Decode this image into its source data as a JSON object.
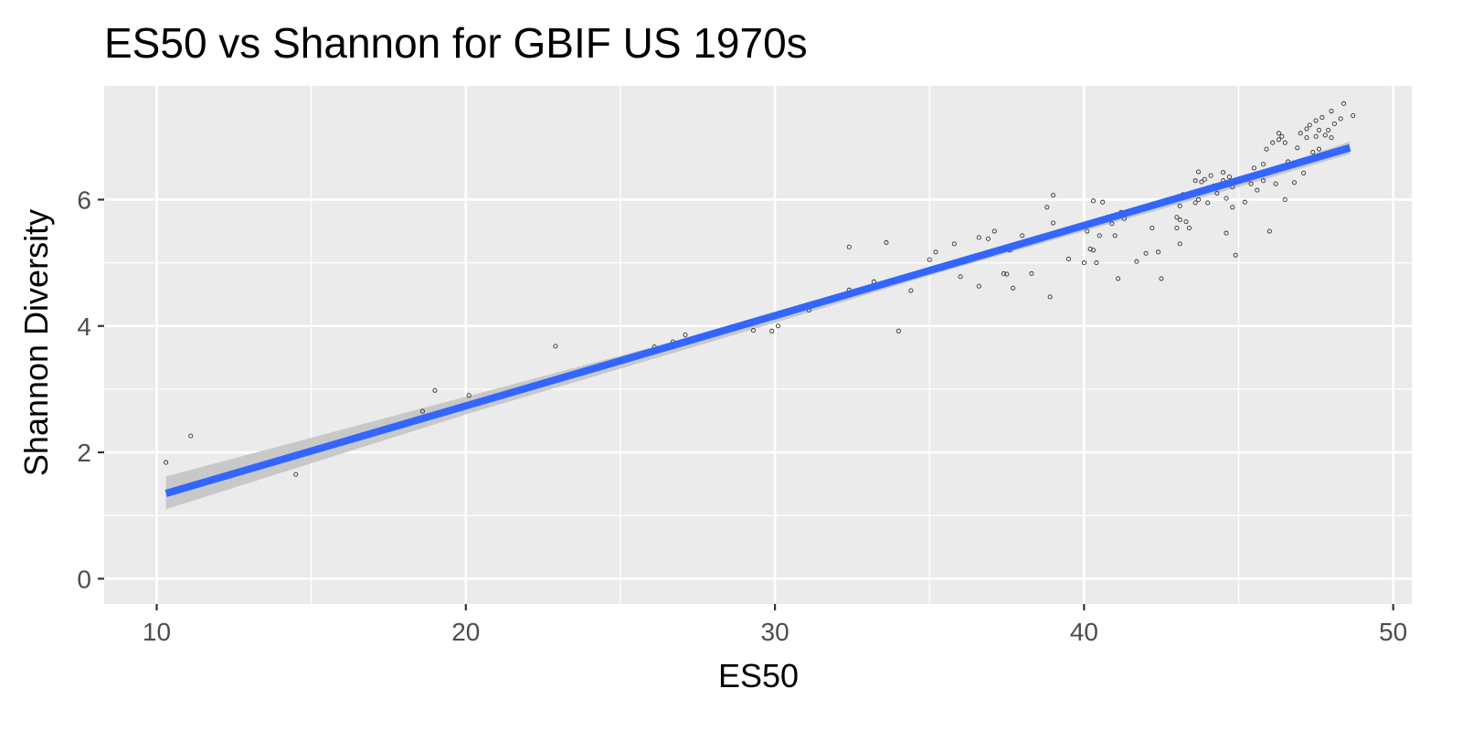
{
  "chart_data": {
    "type": "scatter",
    "title": "ES50 vs Shannon for GBIF US 1970s",
    "xlabel": "ES50",
    "ylabel": "Shannon Diversity",
    "xlim": [
      8.3,
      50.6
    ],
    "ylim": [
      -0.4,
      7.8
    ],
    "x_ticks": [
      10,
      20,
      30,
      40,
      50
    ],
    "x_tick_labels": [
      "10",
      "20",
      "30",
      "40",
      "50"
    ],
    "y_ticks": [
      0,
      2,
      4,
      6
    ],
    "y_tick_labels": [
      "0",
      "2",
      "4",
      "6"
    ],
    "grid": true,
    "legend": "none",
    "colors": {
      "panel_background": "#ebebeb",
      "grid": "#ffffff",
      "fit_line": "#3366ff",
      "confidence_band": "#c4c4c4",
      "points": "#333333"
    },
    "fit": {
      "method": "linear",
      "x": [
        10.3,
        48.6
      ],
      "y": [
        1.35,
        6.82
      ],
      "confidence_band": {
        "x": [
          10.3,
          20,
          30,
          35,
          40,
          45,
          48.6
        ],
        "lower": [
          1.1,
          2.6,
          4.05,
          4.8,
          5.5,
          6.2,
          6.72
        ],
        "upper": [
          1.62,
          2.88,
          4.18,
          4.88,
          5.6,
          6.32,
          6.92
        ]
      }
    },
    "series": [
      {
        "x": [
          10.3,
          11.1,
          14.5,
          18.6,
          19.0,
          20.1,
          22.9,
          26.1,
          26.7,
          27.1,
          29.3,
          29.9,
          30.1,
          31.1,
          32.4,
          32.4,
          33.2,
          33.6,
          34.0,
          34.4,
          35.0,
          35.2,
          35.8,
          36.0,
          36.6,
          36.6,
          36.9,
          37.1,
          37.4,
          37.5,
          37.6,
          37.7,
          38.0,
          38.3,
          38.8,
          38.9,
          39.0,
          39.0,
          39.5,
          40.0,
          40.1,
          40.2,
          40.3,
          40.3,
          40.4,
          40.5,
          40.6,
          40.9,
          41.0,
          41.1,
          41.2,
          41.3,
          41.7,
          42.0,
          42.2,
          42.4,
          42.5,
          42.8,
          43.0,
          43.0,
          43.1,
          43.1,
          43.1,
          43.2,
          43.3,
          43.4,
          43.6,
          43.6,
          43.7,
          43.7,
          43.8,
          43.9,
          44.0,
          44.0,
          44.1,
          44.2,
          44.3,
          44.5,
          44.5,
          44.6,
          44.6,
          44.7,
          44.8,
          44.8,
          44.9,
          45.0,
          45.2,
          45.3,
          45.4,
          45.5,
          45.6,
          45.7,
          45.8,
          45.8,
          45.9,
          46.0,
          46.1,
          46.2,
          46.3,
          46.3,
          46.4,
          46.5,
          46.5,
          46.6,
          46.8,
          46.9,
          47.0,
          47.1,
          47.2,
          47.2,
          47.3,
          47.4,
          47.5,
          47.5,
          47.6,
          47.6,
          47.7,
          47.8,
          47.9,
          48.0,
          48.0,
          48.1,
          48.3,
          48.4,
          48.7
        ],
        "y": [
          1.84,
          2.26,
          1.65,
          2.65,
          2.98,
          2.9,
          3.68,
          3.67,
          3.75,
          3.86,
          3.93,
          3.92,
          4.0,
          4.25,
          5.25,
          4.57,
          4.7,
          5.32,
          3.92,
          4.56,
          5.05,
          5.17,
          5.3,
          4.78,
          5.4,
          4.63,
          5.38,
          5.5,
          4.83,
          4.82,
          5.2,
          4.6,
          5.43,
          4.83,
          5.88,
          4.46,
          6.07,
          5.63,
          5.06,
          5.0,
          5.5,
          5.22,
          5.98,
          5.2,
          5.0,
          5.43,
          5.96,
          5.62,
          5.43,
          4.75,
          5.8,
          5.7,
          5.02,
          5.15,
          5.55,
          5.17,
          4.75,
          6.0,
          5.72,
          5.55,
          5.9,
          5.3,
          5.68,
          6.08,
          5.65,
          5.55,
          6.3,
          5.95,
          6.44,
          6.0,
          6.28,
          6.32,
          6.18,
          5.95,
          6.38,
          6.22,
          6.1,
          6.43,
          6.3,
          5.47,
          6.02,
          6.36,
          6.2,
          5.88,
          5.12,
          6.3,
          5.96,
          6.32,
          6.25,
          6.5,
          6.15,
          6.4,
          6.3,
          6.56,
          6.8,
          5.5,
          6.9,
          6.25,
          6.95,
          7.05,
          7.0,
          6.9,
          6.0,
          6.6,
          6.27,
          6.82,
          7.05,
          6.42,
          7.12,
          6.98,
          7.18,
          6.75,
          7.0,
          7.25,
          6.8,
          7.1,
          7.3,
          7.02,
          7.1,
          6.98,
          7.4,
          7.2,
          7.28,
          7.52,
          7.33
        ]
      }
    ]
  }
}
